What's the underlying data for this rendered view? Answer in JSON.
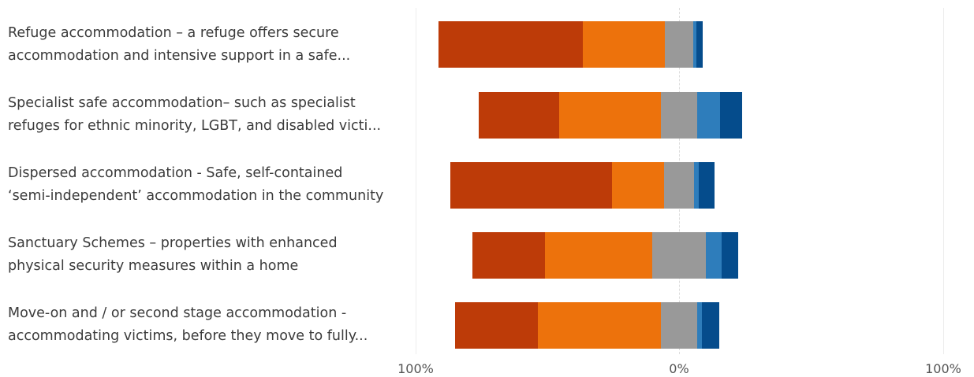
{
  "chart_data": {
    "type": "bar",
    "orientation": "horizontal-diverging-stacked",
    "categories": [
      [
        "Refuge accommodation – a refuge offers secure",
        "accommodation and intensive support in a safe..."
      ],
      [
        "Specialist safe accommodation– such as specialist",
        "refuges for ethnic minority, LGBT, and disabled victi..."
      ],
      [
        "Dispersed accommodation - Safe, self-contained",
        "‘semi-independent’ accommodation in the community"
      ],
      [
        "Sanctuary Schemes – properties with enhanced",
        "physical security measures within a home"
      ],
      [
        "Move-on and / or second stage accommodation -",
        "accommodating victims, before they move to fully..."
      ]
    ],
    "xlim": [
      -100,
      100
    ],
    "x_tick_labels": [
      "100%",
      "0%",
      "100%"
    ],
    "grid": true,
    "series": [
      {
        "color": "#bd3b08",
        "side": "negative",
        "values": [
          54.6,
          30.5,
          61.1,
          27.5,
          31.5
        ]
      },
      {
        "color": "#ed720c",
        "side": "negative",
        "values": [
          31.1,
          38.6,
          19.8,
          40.7,
          46.7
        ]
      },
      {
        "color": "#999999",
        "side": "neutral",
        "values": [
          10.8,
          13.5,
          11.4,
          20.3,
          13.5
        ]
      },
      {
        "color": "#2e7dbb",
        "side": "positive",
        "values": [
          1.2,
          8.7,
          1.8,
          6.0,
          1.8
        ]
      },
      {
        "color": "#054c8c",
        "side": "positive",
        "values": [
          2.4,
          8.4,
          6.0,
          6.3,
          6.6
        ]
      }
    ]
  }
}
